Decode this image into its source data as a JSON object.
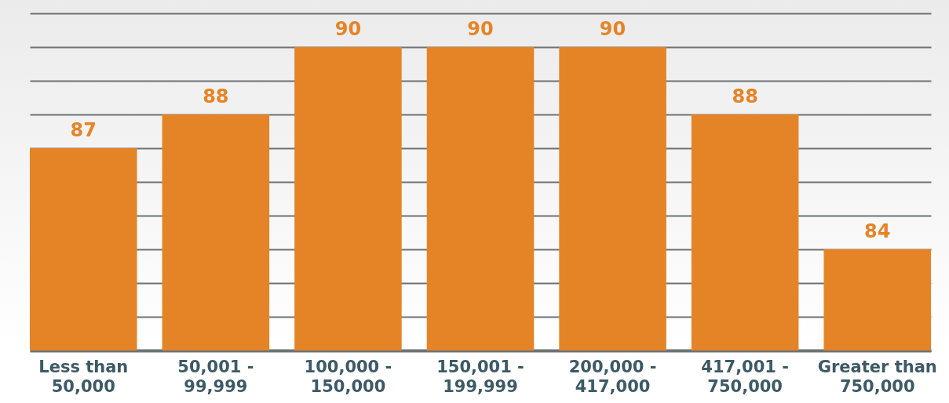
{
  "chart_data": {
    "type": "bar",
    "categories": [
      "Less than 50,000",
      "50,001 - 99,999",
      "100,000 - 150,000",
      "150,001 - 199,999",
      "200,000 - 417,000",
      "417,001 - 750,000",
      "Greater than 750,000"
    ],
    "values": [
      87,
      88,
      90,
      90,
      90,
      88,
      84
    ],
    "color": "#e58426",
    "data_labels": true,
    "grid": "y",
    "ylim": [
      81,
      91
    ],
    "yticks": [
      {
        "value": 81,
        "label": null
      },
      {
        "value": 82,
        "label": null
      },
      {
        "value": 83,
        "label": null
      },
      {
        "value": 84,
        "label": null
      },
      {
        "value": 85,
        "label": null
      },
      {
        "value": 86,
        "label": null
      },
      {
        "value": 87,
        "label": null
      },
      {
        "value": 88,
        "label": null
      },
      {
        "value": 89,
        "label": null
      },
      {
        "value": 90,
        "label": null
      },
      {
        "value": 91,
        "label": null
      }
    ]
  }
}
